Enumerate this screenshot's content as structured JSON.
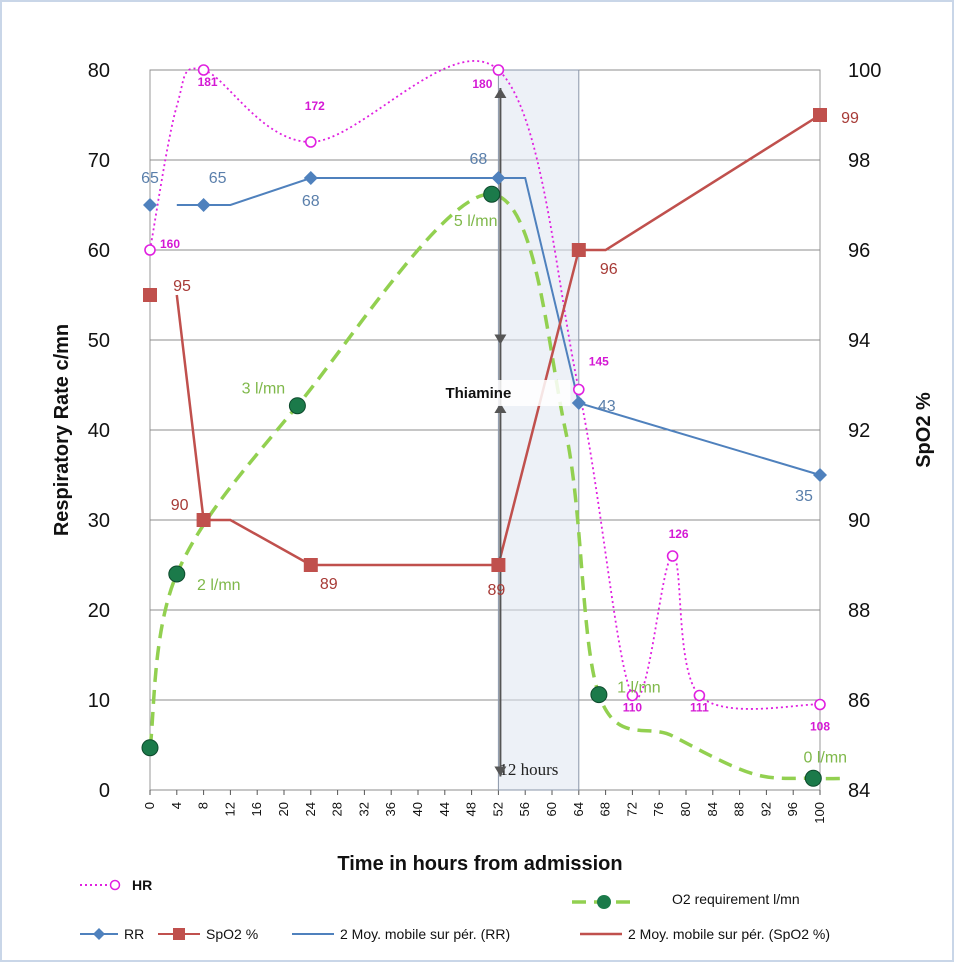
{
  "chart_data": {
    "type": "line",
    "xlabel": "Time in hours from admission",
    "ylabel_left": "Respiratory  Rate c/mn",
    "ylabel_right": "SpO2 %",
    "xlim": [
      0,
      100
    ],
    "ylim_left": [
      0,
      80
    ],
    "ylim_right": [
      84,
      100
    ],
    "xticks": [
      0,
      4,
      8,
      12,
      16,
      20,
      24,
      28,
      32,
      36,
      40,
      44,
      48,
      52,
      56,
      60,
      64,
      68,
      72,
      76,
      80,
      84,
      88,
      92,
      96,
      100
    ],
    "yticks_left": [
      0,
      10,
      20,
      30,
      40,
      50,
      60,
      70,
      80
    ],
    "yticks_right": [
      84,
      86,
      88,
      90,
      92,
      94,
      96,
      98,
      100
    ],
    "grid": "horizontal",
    "legend_position": "bottom",
    "series": [
      {
        "name": "RR",
        "axis": "left",
        "color": "#4f81bd",
        "x": [
          0,
          8,
          24,
          52,
          64,
          100
        ],
        "values": [
          65,
          65,
          68,
          68,
          43,
          35
        ],
        "labels": [
          "65",
          "65",
          "68",
          "68",
          "43",
          "35"
        ]
      },
      {
        "name": "SpO2 %",
        "axis": "right",
        "color": "#c0504d",
        "x": [
          0,
          8,
          24,
          52,
          64,
          100
        ],
        "values": [
          95,
          90,
          89,
          89,
          96,
          99
        ],
        "labels": [
          "95",
          "90",
          "89",
          "89",
          "96",
          "99"
        ]
      },
      {
        "name": "HR",
        "axis": "left",
        "color": "#e020e0",
        "x": [
          0,
          8,
          24,
          52,
          64,
          72,
          78,
          82,
          100
        ],
        "values": [
          60,
          80,
          72,
          80,
          44.5,
          10.5,
          26,
          10.5,
          9.5
        ],
        "labels": [
          "160",
          "181",
          "172",
          "180",
          "145",
          "110",
          "126",
          "111",
          "108"
        ]
      },
      {
        "name": "O2 requirement l/mn",
        "axis": "left",
        "color": "#92d050",
        "x": [
          0,
          4,
          22,
          51,
          67,
          99
        ],
        "values": [
          4.7,
          24,
          42.7,
          66.2,
          10.6,
          1.3
        ],
        "labels": [
          "",
          "2 l/mn",
          "3 l/mn",
          "5 l/mn",
          "1 l/mn",
          "0 l/mn"
        ]
      },
      {
        "name": "2 Moy. mobile sur pér. (RR)",
        "axis": "left",
        "color": "#4f81bd"
      },
      {
        "name": "2 Moy. mobile sur pér. (SpO2 %)",
        "axis": "right",
        "color": "#c0504d"
      }
    ],
    "annotations": [
      {
        "text": "Thiamine",
        "x": 52
      },
      {
        "text": "12 hours",
        "x_range": [
          52,
          64
        ]
      }
    ]
  }
}
